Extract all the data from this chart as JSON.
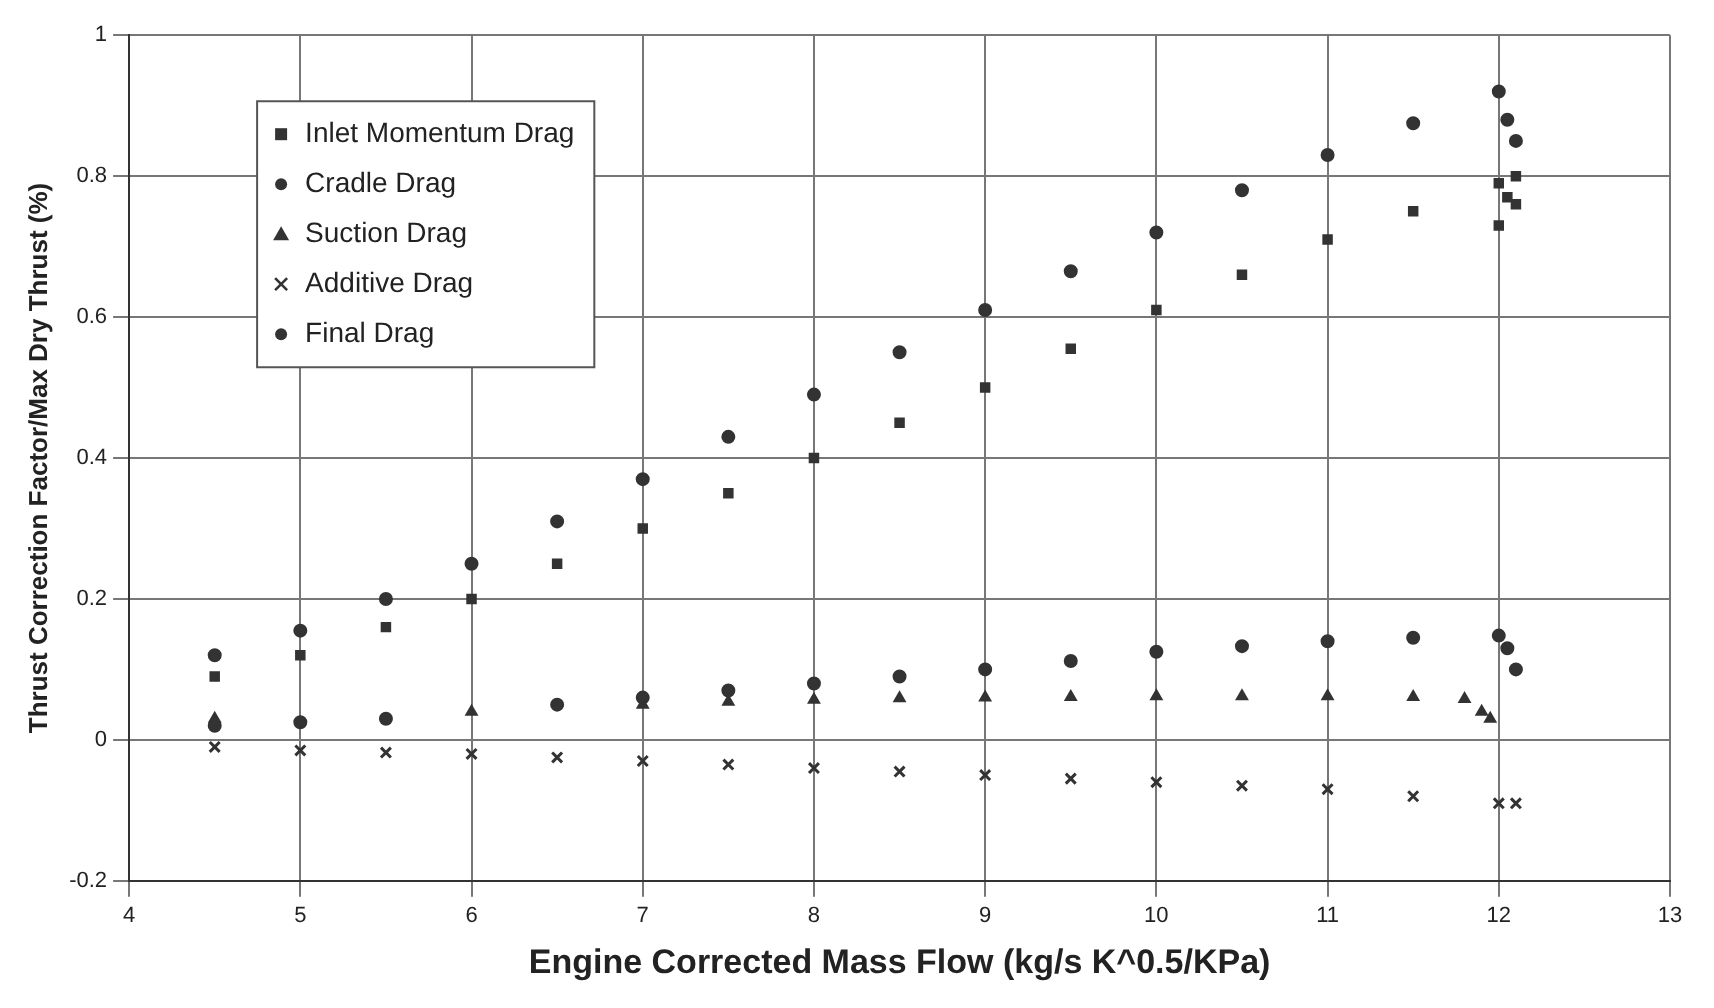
{
  "chart_data": {
    "type": "scatter",
    "xlabel": "Engine Corrected Mass Flow (kg/s K^0.5/KPa)",
    "ylabel": "Thrust Correction Factor/Max Dry Thrust (%)",
    "xlim": [
      4,
      13
    ],
    "xticks": [
      4,
      5,
      6,
      7,
      8,
      9,
      10,
      11,
      12,
      13
    ],
    "ylim": [
      -0.2,
      1
    ],
    "yticks": [
      -0.2,
      0,
      0.2,
      0.4,
      0.6,
      0.8,
      1
    ],
    "grid": true,
    "legend": "top left",
    "series": [
      {
        "name": "Inlet Momentum Drag",
        "color": "#333333",
        "marker": "square",
        "x": [
          4.5,
          5,
          5.5,
          6,
          6.5,
          7,
          7.5,
          8,
          8.5,
          9,
          9.5,
          10,
          10.5,
          11,
          11.5,
          12,
          12.1,
          12.05,
          12.0,
          12.1
        ],
        "values": [
          0.09,
          0.12,
          0.16,
          0.2,
          0.25,
          0.3,
          0.35,
          0.4,
          0.45,
          0.5,
          0.555,
          0.61,
          0.66,
          0.71,
          0.75,
          0.79,
          0.8,
          0.77,
          0.73,
          0.76
        ]
      },
      {
        "name": "Cradle Drag",
        "color": "#333333",
        "marker": "circle",
        "x": [
          4.5,
          5,
          5.5,
          6,
          6.5,
          7,
          7.5,
          8,
          8.5,
          9,
          9.5,
          10,
          10.5,
          11,
          11.5,
          12,
          12.05,
          12.1
        ],
        "values": [
          0.02,
          0.025,
          0.03,
          null,
          0.05,
          0.06,
          0.07,
          0.08,
          0.09,
          0.1,
          0.112,
          0.125,
          0.133,
          0.14,
          0.145,
          0.148,
          0.13,
          0.1
        ]
      },
      {
        "name": "Suction Drag",
        "color": "#333333",
        "marker": "triangle",
        "x": [
          4.5,
          5,
          5.5,
          6,
          6.5,
          7,
          7.5,
          8,
          8.5,
          9,
          9.5,
          10,
          10.5,
          11,
          11.5,
          11.8,
          11.9,
          11.95
        ],
        "values": [
          0.03,
          null,
          null,
          0.04,
          null,
          0.05,
          0.054,
          0.057,
          0.059,
          0.06,
          0.061,
          0.062,
          0.062,
          0.062,
          0.061,
          0.058,
          0.04,
          0.03
        ]
      },
      {
        "name": "Additive Drag",
        "color": "#333333",
        "marker": "cross",
        "x": [
          4.5,
          5,
          5.5,
          6,
          6.5,
          7,
          7.5,
          8,
          8.5,
          9,
          9.5,
          10,
          10.5,
          11,
          11.5,
          12,
          12.1
        ],
        "values": [
          -0.01,
          -0.015,
          -0.018,
          -0.02,
          -0.025,
          -0.03,
          -0.035,
          -0.04,
          -0.045,
          -0.05,
          -0.055,
          -0.06,
          -0.065,
          -0.07,
          -0.08,
          -0.09,
          -0.09
        ]
      },
      {
        "name": "Final Drag",
        "color": "#333333",
        "marker": "circle",
        "x": [
          4.5,
          5,
          5.5,
          6,
          6.5,
          7,
          7.5,
          8,
          8.5,
          9,
          9.5,
          10,
          10.5,
          11,
          11.5,
          12,
          12.05,
          12.1
        ],
        "values": [
          0.12,
          0.155,
          0.2,
          0.25,
          0.31,
          0.37,
          0.43,
          0.49,
          0.55,
          0.61,
          0.665,
          0.72,
          0.78,
          0.83,
          0.875,
          0.92,
          0.88,
          0.85
        ]
      }
    ]
  }
}
